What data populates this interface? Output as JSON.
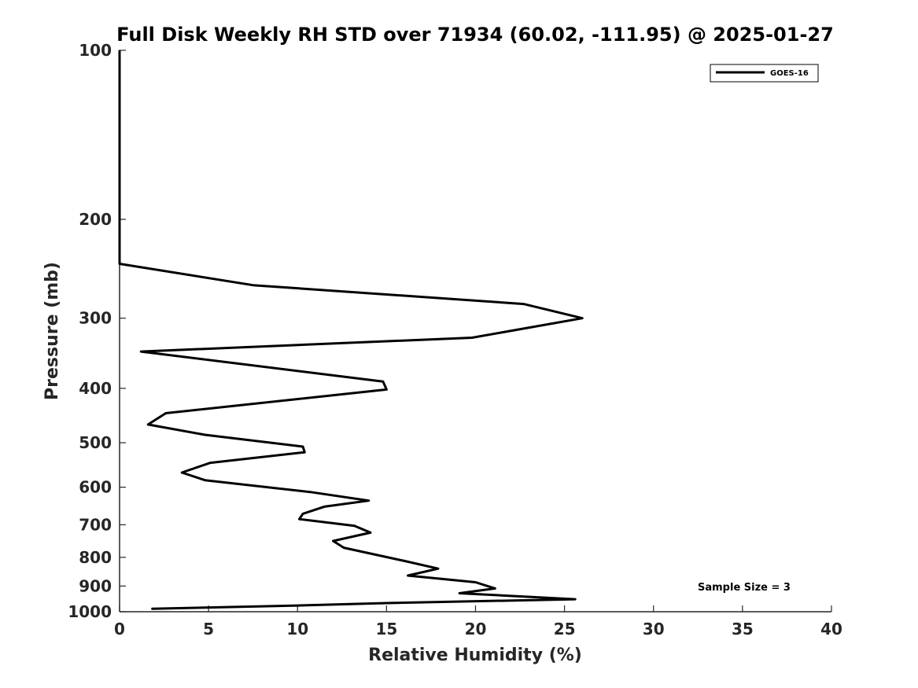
{
  "chart_data": {
    "type": "line",
    "title": "Full Disk Weekly RH STD over 71934 (60.02, -111.95) @ 2025-01-27",
    "xlabel": "Relative Humidity (%)",
    "ylabel": "Pressure (mb)",
    "xlim": [
      0,
      40
    ],
    "ylim": [
      100,
      1000
    ],
    "y_scale": "log",
    "y_reversed": true,
    "x_ticks": [
      "0",
      "5",
      "10",
      "15",
      "20",
      "25",
      "30",
      "35",
      "40"
    ],
    "y_ticks": [
      "100",
      "200",
      "300",
      "400",
      "500",
      "600",
      "700",
      "800",
      "900",
      "1000"
    ],
    "grid": false,
    "legend_position": "top-right",
    "annotation": "Sample Size = 3",
    "series": [
      {
        "name": "GOES-16",
        "color": "#000000",
        "points": [
          [
            0.0,
            100
          ],
          [
            0.0,
            150
          ],
          [
            0.0,
            200
          ],
          [
            0.0,
            240
          ],
          [
            7.5,
            262
          ],
          [
            22.7,
            283
          ],
          [
            26.0,
            300
          ],
          [
            19.8,
            325
          ],
          [
            1.2,
            344
          ],
          [
            14.8,
            389
          ],
          [
            15.0,
            402
          ],
          [
            2.6,
            443
          ],
          [
            1.6,
            464
          ],
          [
            4.8,
            484
          ],
          [
            10.3,
            508
          ],
          [
            10.4,
            520
          ],
          [
            5.1,
            543
          ],
          [
            3.5,
            565
          ],
          [
            4.8,
            583
          ],
          [
            10.7,
            612
          ],
          [
            14.0,
            634
          ],
          [
            11.5,
            650
          ],
          [
            10.3,
            669
          ],
          [
            10.1,
            684
          ],
          [
            13.2,
            703
          ],
          [
            14.1,
            723
          ],
          [
            12.0,
            748
          ],
          [
            12.6,
            769
          ],
          [
            16.0,
            812
          ],
          [
            17.9,
            838
          ],
          [
            16.2,
            862
          ],
          [
            20.0,
            886
          ],
          [
            21.1,
            909
          ],
          [
            19.1,
            927
          ],
          [
            25.6,
            950
          ],
          [
            15.0,
            965
          ],
          [
            10.0,
            975
          ],
          [
            1.8,
            988
          ]
        ]
      }
    ]
  }
}
